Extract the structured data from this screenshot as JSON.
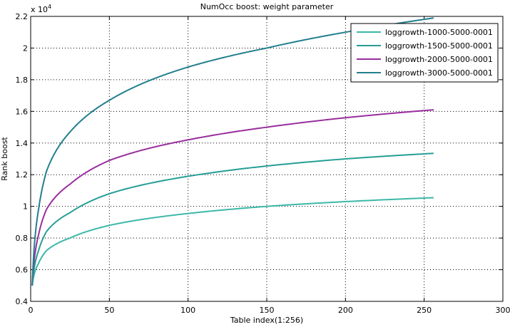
{
  "chart_data": {
    "type": "line",
    "title": "NumOcc boost: weight parameter",
    "xlabel": "Table index(1:256)",
    "ylabel": "Rank boost",
    "y_exponent_label": "x 10",
    "y_exponent_power": "4",
    "xlim": [
      0,
      300
    ],
    "ylim": [
      0.4,
      2.2
    ],
    "x_ticks": [
      "0",
      "50",
      "100",
      "150",
      "200",
      "250",
      "300"
    ],
    "y_ticks": [
      "0.4",
      "0.6",
      "0.8",
      "1",
      "1.2",
      "1.4",
      "1.6",
      "1.8",
      "2",
      "2.2"
    ],
    "grid": true,
    "legend_position": "top-right",
    "series": [
      {
        "name": "loggrowth-1000-5000-0001",
        "color": "#3cb8a8",
        "x": [
          1,
          5,
          10,
          25,
          50,
          100,
          150,
          200,
          256
        ],
        "y": [
          0.5,
          0.64,
          0.72,
          0.8,
          0.88,
          0.955,
          1.0,
          1.03,
          1.055
        ]
      },
      {
        "name": "loggrowth-1500-5000-0001",
        "color": "#269e96",
        "x": [
          1,
          5,
          10,
          25,
          50,
          100,
          150,
          200,
          256
        ],
        "y": [
          0.5,
          0.72,
          0.84,
          0.96,
          1.08,
          1.19,
          1.255,
          1.3,
          1.335
        ]
      },
      {
        "name": "loggrowth-2000-5000-0001",
        "color": "#992e9e",
        "x": [
          1,
          5,
          10,
          25,
          50,
          100,
          150,
          200,
          256
        ],
        "y": [
          0.5,
          0.82,
          0.98,
          1.14,
          1.29,
          1.42,
          1.5,
          1.56,
          1.61
        ]
      },
      {
        "name": "loggrowth-3000-5000-0001",
        "color": "#237f8e",
        "x": [
          1,
          5,
          10,
          25,
          50,
          100,
          150,
          200,
          256
        ],
        "y": [
          0.5,
          0.98,
          1.22,
          1.47,
          1.67,
          1.88,
          2.0,
          2.1,
          2.19
        ]
      }
    ]
  }
}
